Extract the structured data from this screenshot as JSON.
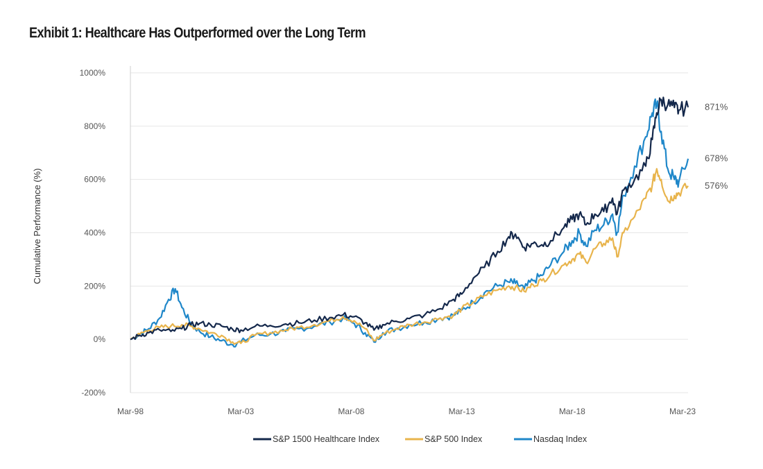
{
  "chart_data": {
    "type": "line",
    "title": "Exhibit 1: Healthcare Has Outperformed over the Long Term",
    "xlabel": "",
    "ylabel": "Cumulative Performance (%)",
    "ylim": [
      -200,
      1000
    ],
    "yticks": [
      -200,
      0,
      200,
      400,
      600,
      800,
      1000
    ],
    "ytick_labels": [
      "-200%",
      "0%",
      "200%",
      "400%",
      "600%",
      "800%",
      "1000%"
    ],
    "xlim": [
      1998.17,
      2023.42
    ],
    "xticks": [
      1998.17,
      2003.17,
      2008.17,
      2013.17,
      2018.17,
      2023.17
    ],
    "xtick_labels": [
      "Mar-98",
      "Mar-03",
      "Mar-08",
      "Mar-13",
      "Mar-18",
      "Mar-23"
    ],
    "grid": "horizontal",
    "legend_position": "bottom",
    "series": [
      {
        "name": "S&P 1500 Healthcare Index",
        "color": "#14284b",
        "end_label": "871%",
        "points": [
          [
            1998.17,
            0
          ],
          [
            1998.6,
            15
          ],
          [
            1999.0,
            25
          ],
          [
            1999.5,
            35
          ],
          [
            2000.0,
            30
          ],
          [
            2000.5,
            40
          ],
          [
            2000.9,
            55
          ],
          [
            2001.3,
            60
          ],
          [
            2001.8,
            55
          ],
          [
            2002.3,
            50
          ],
          [
            2002.8,
            38
          ],
          [
            2003.17,
            35
          ],
          [
            2003.8,
            48
          ],
          [
            2004.5,
            52
          ],
          [
            2005.2,
            58
          ],
          [
            2005.8,
            62
          ],
          [
            2006.5,
            72
          ],
          [
            2007.2,
            82
          ],
          [
            2007.8,
            92
          ],
          [
            2008.3,
            85
          ],
          [
            2008.8,
            62
          ],
          [
            2009.2,
            35
          ],
          [
            2009.6,
            55
          ],
          [
            2010.2,
            68
          ],
          [
            2010.8,
            78
          ],
          [
            2011.5,
            92
          ],
          [
            2012.2,
            115
          ],
          [
            2012.8,
            150
          ],
          [
            2013.17,
            170
          ],
          [
            2013.7,
            230
          ],
          [
            2014.2,
            270
          ],
          [
            2014.8,
            330
          ],
          [
            2015.3,
            385
          ],
          [
            2015.6,
            395
          ],
          [
            2016.0,
            345
          ],
          [
            2016.4,
            360
          ],
          [
            2016.8,
            355
          ],
          [
            2017.2,
            370
          ],
          [
            2017.8,
            420
          ],
          [
            2018.17,
            450
          ],
          [
            2018.5,
            470
          ],
          [
            2018.8,
            430
          ],
          [
            2019.2,
            470
          ],
          [
            2019.6,
            480
          ],
          [
            2020.0,
            530
          ],
          [
            2020.2,
            470
          ],
          [
            2020.5,
            560
          ],
          [
            2021.0,
            600
          ],
          [
            2021.5,
            650
          ],
          [
            2021.8,
            750
          ],
          [
            2022.0,
            850
          ],
          [
            2022.2,
            900
          ],
          [
            2022.5,
            880
          ],
          [
            2022.8,
            870
          ],
          [
            2023.0,
            860
          ],
          [
            2023.42,
            871
          ]
        ]
      },
      {
        "name": "S&P 500 Index",
        "color": "#e8b44c",
        "end_label": "576%",
        "points": [
          [
            1998.17,
            0
          ],
          [
            1998.6,
            20
          ],
          [
            1999.0,
            35
          ],
          [
            1999.5,
            45
          ],
          [
            2000.0,
            50
          ],
          [
            2000.5,
            55
          ],
          [
            2000.9,
            50
          ],
          [
            2001.3,
            40
          ],
          [
            2001.8,
            25
          ],
          [
            2002.3,
            15
          ],
          [
            2002.8,
            -10
          ],
          [
            2003.17,
            -15
          ],
          [
            2003.8,
            15
          ],
          [
            2004.5,
            25
          ],
          [
            2005.2,
            35
          ],
          [
            2005.8,
            45
          ],
          [
            2006.5,
            55
          ],
          [
            2007.2,
            70
          ],
          [
            2007.8,
            85
          ],
          [
            2008.3,
            70
          ],
          [
            2008.8,
            40
          ],
          [
            2009.2,
            -5
          ],
          [
            2009.6,
            20
          ],
          [
            2010.2,
            40
          ],
          [
            2010.8,
            55
          ],
          [
            2011.5,
            65
          ],
          [
            2012.2,
            80
          ],
          [
            2012.8,
            90
          ],
          [
            2013.17,
            115
          ],
          [
            2013.7,
            140
          ],
          [
            2014.2,
            165
          ],
          [
            2014.8,
            185
          ],
          [
            2015.3,
            200
          ],
          [
            2015.6,
            195
          ],
          [
            2016.0,
            180
          ],
          [
            2016.4,
            205
          ],
          [
            2016.8,
            220
          ],
          [
            2017.2,
            245
          ],
          [
            2017.8,
            280
          ],
          [
            2018.17,
            300
          ],
          [
            2018.5,
            320
          ],
          [
            2018.8,
            290
          ],
          [
            2019.2,
            340
          ],
          [
            2019.6,
            360
          ],
          [
            2020.0,
            380
          ],
          [
            2020.2,
            310
          ],
          [
            2020.5,
            400
          ],
          [
            2021.0,
            460
          ],
          [
            2021.5,
            530
          ],
          [
            2021.8,
            580
          ],
          [
            2022.0,
            640
          ],
          [
            2022.2,
            600
          ],
          [
            2022.5,
            520
          ],
          [
            2022.8,
            540
          ],
          [
            2023.0,
            550
          ],
          [
            2023.42,
            576
          ]
        ]
      },
      {
        "name": "Nasdaq Index",
        "color": "#1f87c9",
        "end_label": "678%",
        "points": [
          [
            1998.17,
            0
          ],
          [
            1998.6,
            20
          ],
          [
            1999.0,
            40
          ],
          [
            1999.5,
            80
          ],
          [
            1999.9,
            150
          ],
          [
            2000.2,
            190
          ],
          [
            2000.5,
            120
          ],
          [
            2000.9,
            60
          ],
          [
            2001.3,
            30
          ],
          [
            2001.8,
            10
          ],
          [
            2002.3,
            -5
          ],
          [
            2002.8,
            -20
          ],
          [
            2003.17,
            -10
          ],
          [
            2003.8,
            15
          ],
          [
            2004.5,
            20
          ],
          [
            2005.2,
            30
          ],
          [
            2005.8,
            40
          ],
          [
            2006.5,
            50
          ],
          [
            2007.2,
            65
          ],
          [
            2007.8,
            80
          ],
          [
            2008.3,
            60
          ],
          [
            2008.8,
            25
          ],
          [
            2009.2,
            -10
          ],
          [
            2009.6,
            25
          ],
          [
            2010.2,
            40
          ],
          [
            2010.8,
            55
          ],
          [
            2011.5,
            65
          ],
          [
            2012.2,
            80
          ],
          [
            2012.8,
            90
          ],
          [
            2013.17,
            110
          ],
          [
            2013.7,
            140
          ],
          [
            2014.2,
            175
          ],
          [
            2014.8,
            200
          ],
          [
            2015.3,
            215
          ],
          [
            2015.6,
            210
          ],
          [
            2016.0,
            190
          ],
          [
            2016.4,
            220
          ],
          [
            2016.8,
            240
          ],
          [
            2017.2,
            280
          ],
          [
            2017.8,
            330
          ],
          [
            2018.17,
            370
          ],
          [
            2018.5,
            400
          ],
          [
            2018.8,
            350
          ],
          [
            2019.2,
            410
          ],
          [
            2019.6,
            430
          ],
          [
            2020.0,
            470
          ],
          [
            2020.2,
            400
          ],
          [
            2020.5,
            540
          ],
          [
            2021.0,
            650
          ],
          [
            2021.5,
            760
          ],
          [
            2021.8,
            850
          ],
          [
            2022.0,
            880
          ],
          [
            2022.2,
            780
          ],
          [
            2022.5,
            640
          ],
          [
            2022.8,
            600
          ],
          [
            2023.0,
            590
          ],
          [
            2023.42,
            678
          ]
        ]
      }
    ]
  }
}
